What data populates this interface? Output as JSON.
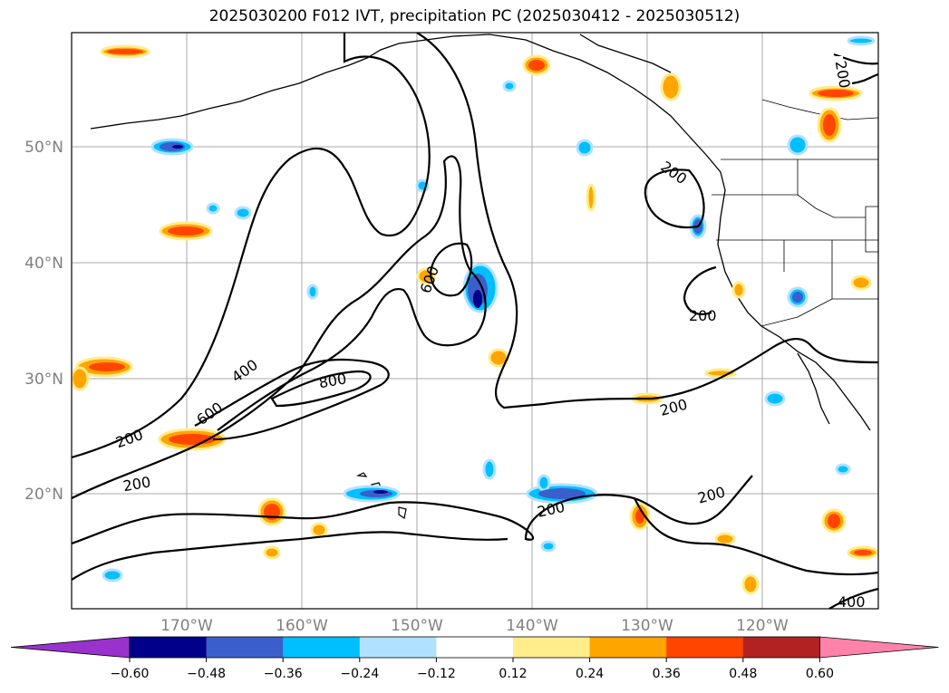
{
  "title": "2025030200 F012 IVT, precipitation PC (2025030412 - 2025030512)",
  "lat_labels": [
    "50°N",
    "40°N",
    "30°N",
    "20°N"
  ],
  "lon_labels": [
    "170°W",
    "160°W",
    "150°W",
    "140°W",
    "130°W",
    "120°W"
  ],
  "contour_labels": [
    "200",
    "200",
    "200",
    "200",
    "200",
    "200",
    "200",
    "200",
    "400",
    "400",
    "600",
    "600",
    "800"
  ],
  "colorbar": {
    "ticks": [
      "−0.60",
      "−0.48",
      "−0.36",
      "−0.24",
      "−0.12",
      "0.12",
      "0.24",
      "0.36",
      "0.48",
      "0.60"
    ],
    "colors": [
      "#9932cc",
      "#00008b",
      "#3a5fcd",
      "#00bfff",
      "#b0e2ff",
      "#ffffff",
      "#ffec8b",
      "#ffa500",
      "#ff4500",
      "#b22222",
      "#ff82ab"
    ]
  }
}
